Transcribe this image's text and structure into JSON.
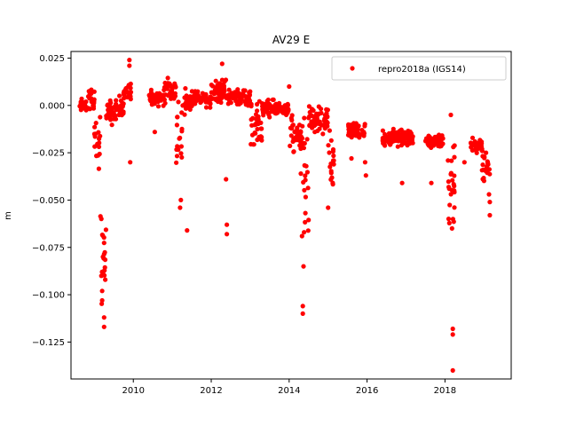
{
  "chart_data": {
    "type": "scatter",
    "title": "AV29 E",
    "xlabel": "",
    "ylabel": "m",
    "xlim": [
      2008.4,
      2019.7
    ],
    "ylim": [
      -0.1445,
      0.0285
    ],
    "x_ticks": [
      2010,
      2012,
      2014,
      2016,
      2018
    ],
    "y_ticks": [
      0.025,
      0.0,
      -0.025,
      -0.05,
      -0.075,
      -0.1,
      -0.125
    ],
    "y_tick_labels": [
      "0.025",
      "0.000",
      "−0.025",
      "−0.050",
      "−0.075",
      "−0.100",
      "−0.125"
    ],
    "grid": false,
    "legend_position": "top-right",
    "marker_color": "#ff0000",
    "series": [
      {
        "name": "repro2018a (IGS14)",
        "segments": [
          {
            "x0": 2008.6,
            "x1": 2008.83,
            "center": 0.0,
            "spread": 0.003
          },
          {
            "x0": 2008.83,
            "x1": 2009.0,
            "center": 0.003,
            "spread": 0.006
          },
          {
            "x0": 2009.0,
            "x1": 2009.15,
            "center": -0.02,
            "spread": 0.012
          },
          {
            "x0": 2009.15,
            "x1": 2009.3,
            "center": -0.07,
            "spread": 0.03
          },
          {
            "x0": 2009.3,
            "x1": 2009.55,
            "center": -0.004,
            "spread": 0.006
          },
          {
            "x0": 2009.55,
            "x1": 2009.75,
            "center": -0.002,
            "spread": 0.006
          },
          {
            "x0": 2009.75,
            "x1": 2009.95,
            "center": 0.008,
            "spread": 0.004
          },
          {
            "x0": 2010.4,
            "x1": 2010.8,
            "center": 0.004,
            "spread": 0.004
          },
          {
            "x0": 2010.8,
            "x1": 2011.1,
            "center": 0.008,
            "spread": 0.006
          },
          {
            "x0": 2011.1,
            "x1": 2011.25,
            "center": -0.015,
            "spread": 0.02
          },
          {
            "x0": 2011.25,
            "x1": 2011.5,
            "center": 0.001,
            "spread": 0.006
          },
          {
            "x0": 2011.5,
            "x1": 2012.0,
            "center": 0.004,
            "spread": 0.004
          },
          {
            "x0": 2012.0,
            "x1": 2012.4,
            "center": 0.008,
            "spread": 0.006
          },
          {
            "x0": 2012.4,
            "x1": 2013.0,
            "center": 0.004,
            "spread": 0.004
          },
          {
            "x0": 2013.0,
            "x1": 2013.3,
            "center": -0.012,
            "spread": 0.012
          },
          {
            "x0": 2013.3,
            "x1": 2014.0,
            "center": -0.002,
            "spread": 0.004
          },
          {
            "x0": 2014.0,
            "x1": 2014.35,
            "center": -0.015,
            "spread": 0.01
          },
          {
            "x0": 2014.35,
            "x1": 2014.5,
            "center": -0.04,
            "spread": 0.03
          },
          {
            "x0": 2014.5,
            "x1": 2015.0,
            "center": -0.008,
            "spread": 0.006
          },
          {
            "x0": 2015.0,
            "x1": 2015.15,
            "center": -0.03,
            "spread": 0.015
          },
          {
            "x0": 2015.5,
            "x1": 2015.95,
            "center": -0.013,
            "spread": 0.004
          },
          {
            "x0": 2016.4,
            "x1": 2017.2,
            "center": -0.017,
            "spread": 0.004
          },
          {
            "x0": 2017.5,
            "x1": 2017.95,
            "center": -0.019,
            "spread": 0.004
          },
          {
            "x0": 2018.05,
            "x1": 2018.25,
            "center": -0.04,
            "spread": 0.025
          },
          {
            "x0": 2018.65,
            "x1": 2018.95,
            "center": -0.021,
            "spread": 0.004
          },
          {
            "x0": 2018.95,
            "x1": 2019.15,
            "center": -0.032,
            "spread": 0.01
          }
        ],
        "outliers": [
          [
            2009.25,
            -0.117
          ],
          [
            2009.25,
            -0.112
          ],
          [
            2009.2,
            -0.103
          ],
          [
            2009.2,
            -0.098
          ],
          [
            2009.18,
            -0.09
          ],
          [
            2009.22,
            -0.08
          ],
          [
            2009.9,
            0.024
          ],
          [
            2009.9,
            0.021
          ],
          [
            2009.92,
            -0.03
          ],
          [
            2010.55,
            -0.014
          ],
          [
            2011.2,
            -0.054
          ],
          [
            2011.22,
            -0.05
          ],
          [
            2011.38,
            -0.066
          ],
          [
            2012.4,
            -0.063
          ],
          [
            2012.4,
            -0.068
          ],
          [
            2012.38,
            -0.039
          ],
          [
            2012.28,
            0.022
          ],
          [
            2014.35,
            -0.11
          ],
          [
            2014.35,
            -0.106
          ],
          [
            2014.37,
            -0.085
          ],
          [
            2014.33,
            -0.069
          ],
          [
            2014.3,
            -0.036
          ],
          [
            2014.0,
            0.01
          ],
          [
            2015.0,
            -0.054
          ],
          [
            2015.6,
            -0.028
          ],
          [
            2015.95,
            -0.03
          ],
          [
            2015.97,
            -0.037
          ],
          [
            2016.9,
            -0.041
          ],
          [
            2017.65,
            -0.041
          ],
          [
            2018.2,
            -0.14
          ],
          [
            2018.2,
            -0.121
          ],
          [
            2018.2,
            -0.118
          ],
          [
            2018.18,
            -0.065
          ],
          [
            2018.15,
            -0.005
          ],
          [
            2018.5,
            -0.03
          ],
          [
            2019.15,
            -0.058
          ],
          [
            2019.15,
            -0.051
          ],
          [
            2019.13,
            -0.047
          ]
        ]
      }
    ]
  }
}
